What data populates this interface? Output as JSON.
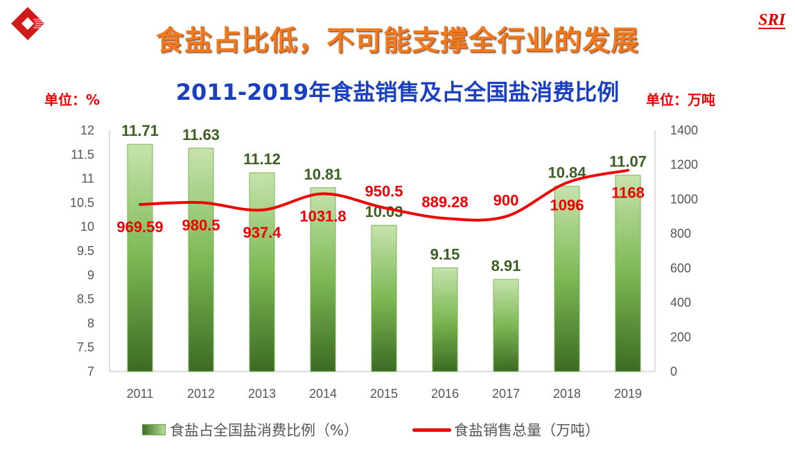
{
  "header": {
    "title": "食盐占比低，不可能支撑全行业的发展",
    "brand": "SRI"
  },
  "units": {
    "left": "单位：%",
    "right": "单位：万吨"
  },
  "chart_data": {
    "type": "bar+line",
    "title": "2011-2019年食盐销售及占全国盐消费比例",
    "categories": [
      "2011",
      "2012",
      "2013",
      "2014",
      "2015",
      "2016",
      "2017",
      "2018",
      "2019"
    ],
    "series": [
      {
        "name": "食盐占全国盐消费比例（%）",
        "type": "bar",
        "axis": "left",
        "color": "#5e9c3a",
        "values": [
          11.71,
          11.63,
          11.12,
          10.81,
          10.03,
          9.15,
          8.91,
          10.84,
          11.07
        ],
        "labels": [
          "11.71",
          "11.63",
          "11.12",
          "10.81",
          "10.03",
          "9.15",
          "8.91",
          "10.84",
          "11.07"
        ]
      },
      {
        "name": "食盐销售总量（万吨）",
        "type": "line",
        "axis": "right",
        "color": "#ee0000",
        "values": [
          969.59,
          980.5,
          937.4,
          1031.8,
          950.5,
          889.28,
          900,
          1096,
          1168
        ],
        "labels": [
          "969.59",
          "980.5",
          "937.4",
          "1031.8",
          "950.5",
          "889.28",
          "900",
          "1096",
          "1168"
        ],
        "label_side": [
          "below",
          "below",
          "below",
          "below",
          "above",
          "above",
          "above",
          "below",
          "below"
        ]
      }
    ],
    "y_left": {
      "min": 7,
      "max": 12,
      "step": 0.5,
      "ticks": [
        "7",
        "7.5",
        "8",
        "8.5",
        "9",
        "9.5",
        "10",
        "10.5",
        "11",
        "11.5",
        "12"
      ]
    },
    "y_right": {
      "min": 0,
      "max": 1400,
      "step": 200,
      "ticks": [
        "0",
        "200",
        "400",
        "600",
        "800",
        "1000",
        "1200",
        "1400"
      ]
    },
    "legend": "bottom",
    "grid": false
  }
}
